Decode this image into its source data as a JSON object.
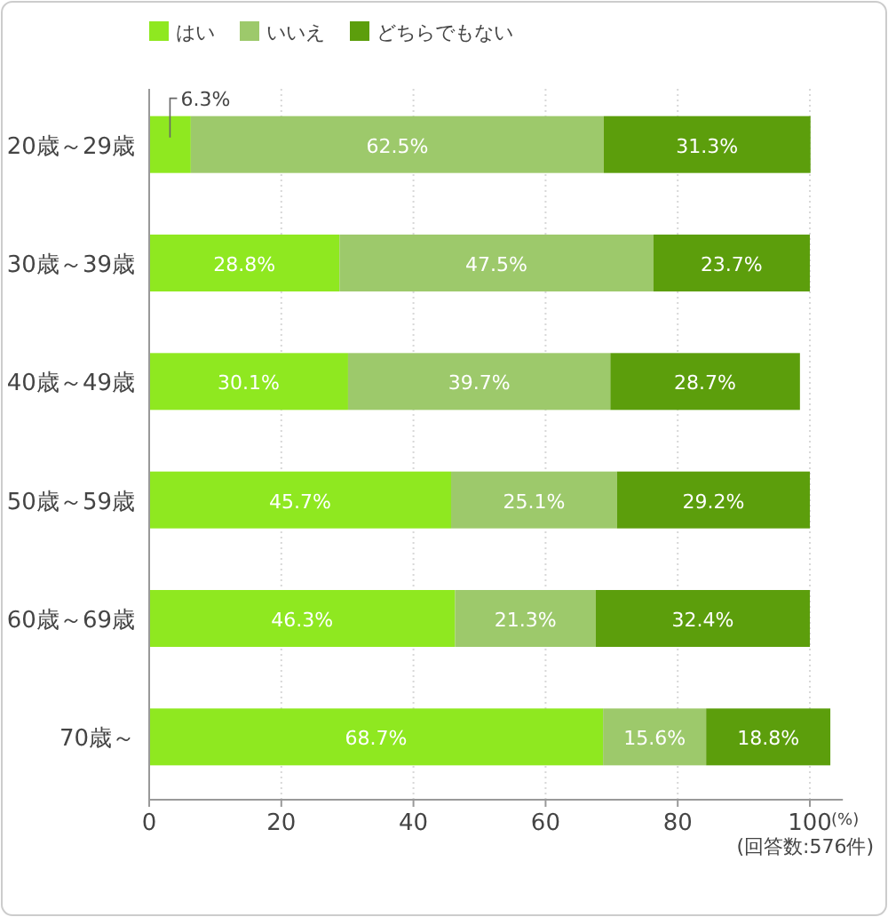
{
  "chart_data": {
    "type": "bar",
    "orientation": "horizontal",
    "stacked": true,
    "categories": [
      "20歳～29歳",
      "30歳～39歳",
      "40歳～49歳",
      "50歳～59歳",
      "60歳～69歳",
      "70歳～"
    ],
    "series": [
      {
        "name": "はい",
        "color": "#8fe820",
        "values": [
          6.3,
          28.8,
          30.1,
          45.7,
          46.3,
          68.7
        ],
        "value_labels": [
          "6.3%",
          "28.8%",
          "30.1%",
          "45.7%",
          "46.3%",
          "68.7%"
        ]
      },
      {
        "name": "いいえ",
        "color": "#9dc96b",
        "values": [
          62.5,
          47.5,
          39.7,
          25.1,
          21.3,
          15.6
        ],
        "value_labels": [
          "62.5%",
          "47.5%",
          "39.7%",
          "25.1%",
          "21.3%",
          "15.6%"
        ]
      },
      {
        "name": "どちらでもない",
        "color": "#5c9e0c",
        "values": [
          31.3,
          23.7,
          28.7,
          29.2,
          32.4,
          18.8
        ],
        "value_labels": [
          "31.3%",
          "23.7%",
          "28.7%",
          "29.2%",
          "32.4%",
          "18.8%"
        ]
      }
    ],
    "xlim": [
      0,
      105
    ],
    "xticks": [
      0,
      20,
      40,
      60,
      80,
      100
    ],
    "xlabel": "(%)",
    "grid": "x",
    "legend": "top left",
    "annotations": [
      "(回答数:576件)"
    ]
  }
}
